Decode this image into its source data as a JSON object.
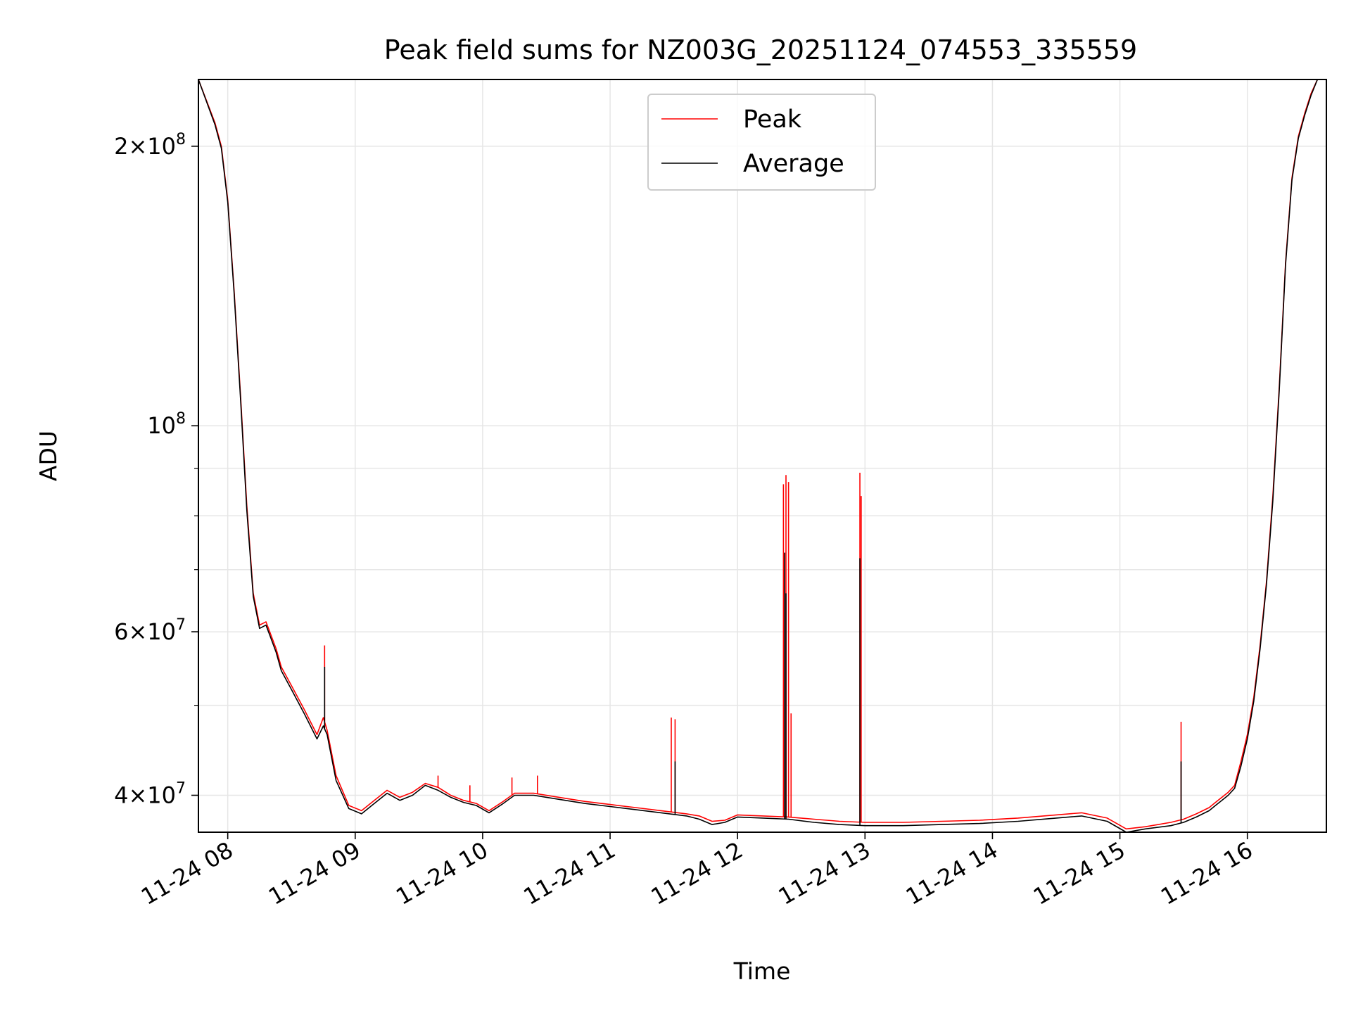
{
  "chart_data": {
    "type": "line",
    "title": "Peak field sums for NZ003G_20251124_074553_335559",
    "xlabel": "Time",
    "ylabel": "ADU",
    "yscale": "log",
    "grid": true,
    "legend_position": "upper-center",
    "x_units": "hours since 2025-11-24 00:00",
    "xlim": [
      7.77,
      16.62
    ],
    "ylim": [
      36500000,
      236000000
    ],
    "x_ticks": [
      {
        "value": 8,
        "label": "11-24 08"
      },
      {
        "value": 9,
        "label": "11-24 09"
      },
      {
        "value": 10,
        "label": "11-24 10"
      },
      {
        "value": 11,
        "label": "11-24 11"
      },
      {
        "value": 12,
        "label": "11-24 12"
      },
      {
        "value": 13,
        "label": "11-24 13"
      },
      {
        "value": 14,
        "label": "11-24 14"
      },
      {
        "value": 15,
        "label": "11-24 15"
      },
      {
        "value": 16,
        "label": "11-24 16"
      }
    ],
    "y_ticks_major": [
      {
        "value": 40000000,
        "base": "4",
        "exp": "7"
      },
      {
        "value": 60000000,
        "base": "6",
        "exp": "7"
      },
      {
        "value": 100000000,
        "base": "",
        "exp": "8"
      },
      {
        "value": 200000000,
        "base": "2",
        "exp": "8"
      }
    ],
    "y_ticks_minor": [
      50000000,
      70000000,
      80000000,
      90000000
    ],
    "series": [
      {
        "name": "Peak",
        "color": "#ff0000",
        "x": [
          7.77,
          7.9,
          7.95,
          8.0,
          8.05,
          8.1,
          8.15,
          8.2,
          8.25,
          8.3,
          8.33,
          8.38,
          8.42,
          8.5,
          8.6,
          8.7,
          8.75,
          8.78,
          8.85,
          8.95,
          9.05,
          9.15,
          9.25,
          9.35,
          9.45,
          9.55,
          9.65,
          9.75,
          9.85,
          9.95,
          10.05,
          10.15,
          10.25,
          10.4,
          10.6,
          10.8,
          11.0,
          11.2,
          11.4,
          11.6,
          11.7,
          11.8,
          11.9,
          12.0,
          12.2,
          12.4,
          12.6,
          12.8,
          13.0,
          13.3,
          13.6,
          13.9,
          14.2,
          14.5,
          14.7,
          14.9,
          15.05,
          15.2,
          15.4,
          15.5,
          15.6,
          15.7,
          15.75,
          15.8,
          15.85,
          15.9,
          15.95,
          16.0,
          16.05,
          16.1,
          16.15,
          16.2,
          16.25,
          16.3,
          16.35,
          16.4,
          16.45,
          16.5,
          16.55,
          16.6
        ],
        "values": [
          236000000,
          212000000,
          200000000,
          175000000,
          140000000,
          108000000,
          82000000,
          66000000,
          61000000,
          61500000,
          60000000,
          57500000,
          55000000,
          52500000,
          49500000,
          46500000,
          48500000,
          47000000,
          42000000,
          39000000,
          38500000,
          39500000,
          40500000,
          39800000,
          40300000,
          41200000,
          40800000,
          40000000,
          39500000,
          39200000,
          38500000,
          39300000,
          40200000,
          40200000,
          39800000,
          39400000,
          39100000,
          38800000,
          38500000,
          38200000,
          38000000,
          37500000,
          37600000,
          38100000,
          38000000,
          37900000,
          37700000,
          37500000,
          37400000,
          37400000,
          37500000,
          37600000,
          37800000,
          38100000,
          38300000,
          37800000,
          36800000,
          37000000,
          37400000,
          37700000,
          38200000,
          38800000,
          39300000,
          39800000,
          40300000,
          41000000,
          43500000,
          46500000,
          51000000,
          58000000,
          68000000,
          84000000,
          110000000,
          150000000,
          185000000,
          205000000,
          217000000,
          228000000,
          236000000,
          236000000
        ],
        "spikes": [
          {
            "x": 8.76,
            "value": 58000000
          },
          {
            "x": 9.65,
            "value": 42000000
          },
          {
            "x": 9.9,
            "value": 41000000
          },
          {
            "x": 10.23,
            "value": 41800000
          },
          {
            "x": 10.43,
            "value": 42000000
          },
          {
            "x": 11.48,
            "value": 48500000
          },
          {
            "x": 11.51,
            "value": 48300000
          },
          {
            "x": 12.36,
            "value": 86500000
          },
          {
            "x": 12.38,
            "value": 88500000
          },
          {
            "x": 12.4,
            "value": 87000000
          },
          {
            "x": 12.42,
            "value": 49000000
          },
          {
            "x": 12.96,
            "value": 89000000
          },
          {
            "x": 12.97,
            "value": 84000000
          },
          {
            "x": 15.48,
            "value": 48000000
          }
        ]
      },
      {
        "name": "Average",
        "color": "#000000",
        "x": [
          7.77,
          7.9,
          7.95,
          8.0,
          8.05,
          8.1,
          8.15,
          8.2,
          8.25,
          8.3,
          8.33,
          8.38,
          8.42,
          8.5,
          8.6,
          8.7,
          8.75,
          8.78,
          8.85,
          8.95,
          9.05,
          9.15,
          9.25,
          9.35,
          9.45,
          9.55,
          9.65,
          9.75,
          9.85,
          9.95,
          10.05,
          10.15,
          10.25,
          10.4,
          10.6,
          10.8,
          11.0,
          11.2,
          11.4,
          11.6,
          11.7,
          11.8,
          11.9,
          12.0,
          12.2,
          12.4,
          12.6,
          12.8,
          13.0,
          13.3,
          13.6,
          13.9,
          14.2,
          14.5,
          14.7,
          14.9,
          15.05,
          15.2,
          15.4,
          15.5,
          15.6,
          15.7,
          15.75,
          15.8,
          15.85,
          15.9,
          15.95,
          16.0,
          16.05,
          16.1,
          16.15,
          16.2,
          16.25,
          16.3,
          16.35,
          16.4,
          16.45,
          16.5,
          16.55,
          16.6
        ],
        "values": [
          236000000,
          211000000,
          199000000,
          174000000,
          139000000,
          107000000,
          81000000,
          65500000,
          60500000,
          61000000,
          59500000,
          57000000,
          54500000,
          52000000,
          49000000,
          46000000,
          47500000,
          46500000,
          41500000,
          38700000,
          38200000,
          39200000,
          40200000,
          39500000,
          40000000,
          41000000,
          40500000,
          39800000,
          39300000,
          39000000,
          38300000,
          39100000,
          40000000,
          40000000,
          39600000,
          39200000,
          38900000,
          38600000,
          38300000,
          38000000,
          37700000,
          37200000,
          37400000,
          37900000,
          37800000,
          37700000,
          37400000,
          37200000,
          37100000,
          37100000,
          37200000,
          37300000,
          37500000,
          37800000,
          38000000,
          37500000,
          36500000,
          36800000,
          37100000,
          37400000,
          37900000,
          38500000,
          39000000,
          39500000,
          40000000,
          40700000,
          43000000,
          46000000,
          50500000,
          57500000,
          67500000,
          83000000,
          109000000,
          149000000,
          184000000,
          204000000,
          216000000,
          227000000,
          236000000,
          236000000
        ],
        "spikes": [
          {
            "x": 8.76,
            "value": 55000000
          },
          {
            "x": 11.51,
            "value": 43500000
          },
          {
            "x": 12.37,
            "value": 73000000
          },
          {
            "x": 12.38,
            "value": 66000000
          },
          {
            "x": 12.96,
            "value": 72000000
          },
          {
            "x": 15.48,
            "value": 43500000
          }
        ]
      }
    ],
    "legend": [
      {
        "name": "Peak",
        "color": "#ff0000"
      },
      {
        "name": "Average",
        "color": "#000000"
      }
    ]
  }
}
